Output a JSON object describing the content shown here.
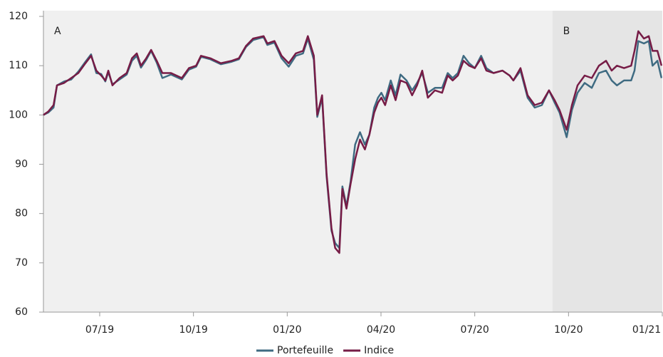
{
  "chart_data": {
    "type": "line",
    "x": [
      2019.35,
      2019.363,
      2019.377,
      2019.386,
      2019.405,
      2019.424,
      2019.443,
      2019.462,
      2019.477,
      2019.491,
      2019.504,
      2019.515,
      2019.523,
      2019.534,
      2019.553,
      2019.572,
      2019.586,
      2019.599,
      2019.61,
      2019.624,
      2019.637,
      2019.652,
      2019.667,
      2019.69,
      2019.719,
      2019.738,
      2019.757,
      2019.77,
      2019.795,
      2019.823,
      2019.852,
      2019.871,
      2019.89,
      2019.909,
      2019.937,
      2019.947,
      2019.966,
      2019.985,
      2020.004,
      2020.023,
      2020.042,
      2020.055,
      2020.071,
      2020.08,
      2020.093,
      2020.105,
      2020.118,
      2020.128,
      2020.139,
      2020.147,
      2020.158,
      2020.169,
      2020.181,
      2020.194,
      2020.207,
      2020.219,
      2020.232,
      2020.242,
      2020.251,
      2020.261,
      2020.276,
      2020.289,
      2020.302,
      2020.318,
      2020.333,
      2020.346,
      2020.36,
      2020.375,
      2020.394,
      2020.413,
      2020.428,
      2020.441,
      2020.455,
      2020.47,
      2020.485,
      2020.5,
      2020.517,
      2020.531,
      2020.55,
      2020.574,
      2020.593,
      2020.603,
      2020.622,
      2020.641,
      2020.66,
      2020.679,
      2020.698,
      2020.713,
      2020.726,
      2020.745,
      2020.759,
      2020.774,
      2020.793,
      2020.812,
      2020.831,
      2020.85,
      2020.865,
      2020.879,
      2020.898,
      2020.917,
      2020.926,
      2020.936,
      2020.951,
      2020.964,
      2020.974,
      2020.987,
      2020.998
    ],
    "series": [
      {
        "name": "Portefeuille",
        "color": "#3f6b82",
        "values": [
          100,
          100.5,
          101.5,
          106,
          106.8,
          107.2,
          108.8,
          110.8,
          112.3,
          108.5,
          108.3,
          106.8,
          108.7,
          106.2,
          107.2,
          108.2,
          111,
          112,
          109.6,
          111.2,
          113,
          110.6,
          107.5,
          108.2,
          107.2,
          109.2,
          109.8,
          111.8,
          111.3,
          110.3,
          110.8,
          111.3,
          113.8,
          115.2,
          115.8,
          114.2,
          114.7,
          111.5,
          109.8,
          112,
          112.5,
          115.5,
          111.2,
          99.6,
          103.5,
          87.5,
          76.5,
          74,
          73,
          85.5,
          81.5,
          86.5,
          94,
          96.5,
          94,
          96,
          101.5,
          103.5,
          104.5,
          103,
          107,
          104,
          108.2,
          107,
          105,
          106.5,
          108.5,
          104.5,
          105.5,
          105.5,
          108.5,
          107.5,
          108.5,
          112,
          110.5,
          109.5,
          112,
          109.5,
          108.5,
          109,
          108,
          107,
          109,
          103.5,
          101.5,
          102,
          105,
          102.5,
          100.5,
          95.5,
          101,
          104.5,
          106.5,
          105.5,
          108.5,
          109,
          107,
          106,
          107,
          107,
          109,
          115,
          114.5,
          115,
          110,
          111,
          107.5
        ]
      },
      {
        "name": "Indice",
        "color": "#761c46",
        "values": [
          100,
          100.7,
          102,
          106,
          106.5,
          107.5,
          108.5,
          110.5,
          112,
          109,
          108,
          107,
          109,
          106,
          107.5,
          108.5,
          111.5,
          112.5,
          110,
          111.5,
          113.2,
          111,
          108.5,
          108.5,
          107.5,
          109.5,
          110,
          112,
          111.5,
          110.5,
          111,
          111.5,
          114,
          115.5,
          116,
          114.5,
          115,
          112,
          110.5,
          112.5,
          113,
          116,
          112,
          100,
          104,
          88,
          77,
          73,
          72,
          85,
          81,
          86,
          91,
          95,
          93,
          96,
          100.5,
          102.5,
          103.5,
          102,
          106,
          103,
          107,
          106.5,
          104,
          106,
          109,
          103.5,
          105,
          104.5,
          108,
          107,
          108,
          111,
          110,
          109.5,
          111.5,
          109,
          108.5,
          109,
          108,
          107,
          109.5,
          104,
          102,
          102.5,
          105,
          103,
          101,
          97,
          102,
          106,
          108,
          107.5,
          110,
          111,
          109,
          110,
          109.5,
          110,
          113,
          117,
          115.5,
          116,
          113,
          113,
          110
        ]
      }
    ],
    "xlim": [
      2019.35,
      2021.0
    ],
    "xticks": [
      {
        "value": 2019.5,
        "label": "07/19"
      },
      {
        "value": 2019.75,
        "label": "10/19"
      },
      {
        "value": 2020.0,
        "label": "01/20"
      },
      {
        "value": 2020.25,
        "label": "04/20"
      },
      {
        "value": 2020.5,
        "label": "07/20"
      },
      {
        "value": 2020.75,
        "label": "10/20"
      },
      {
        "value": 2021.0,
        "label": "01/21"
      }
    ],
    "ylim": [
      60,
      120
    ],
    "yticks": [
      60,
      70,
      80,
      90,
      100,
      110,
      120
    ],
    "regions": [
      {
        "label": "A",
        "start": 2019.35,
        "end": 2020.707,
        "color": "#f0f0f0"
      },
      {
        "label": "B",
        "start": 2020.707,
        "end": 2021.0,
        "color": "#e5e5e5"
      }
    ],
    "legend": "bottom"
  }
}
